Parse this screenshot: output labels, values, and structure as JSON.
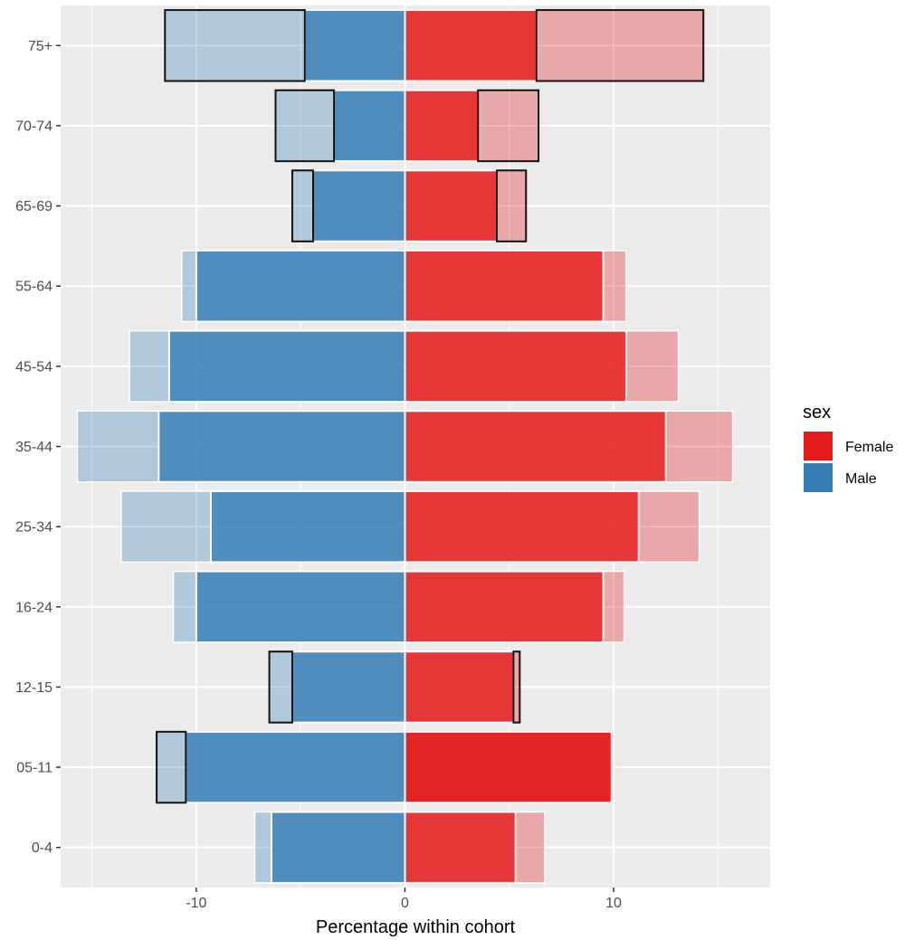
{
  "chart_data": {
    "type": "bar",
    "orientation": "horizontal",
    "xlabel": "Percentage within cohort",
    "ylabel": "",
    "xlim": [
      -16.5,
      17.5
    ],
    "xticks": [
      -10,
      0,
      10
    ],
    "xtick_labels": [
      "-10",
      "0",
      "10"
    ],
    "categories": [
      "75+",
      "70-74",
      "65-69",
      "55-64",
      "45-54",
      "35-44",
      "25-34",
      "16-24",
      "12-15",
      "05-11",
      "0-4"
    ],
    "grid": true,
    "legend_position": "right",
    "legend": {
      "title": "sex",
      "entries": [
        {
          "label": "Female",
          "color": "#E41A1C"
        },
        {
          "label": "Male",
          "color": "#377EB8"
        }
      ]
    },
    "series": [
      {
        "name": "Female",
        "values": [
          6.3,
          3.5,
          4.4,
          9.5,
          10.6,
          12.5,
          11.2,
          9.5,
          5.2,
          9.9,
          5.3
        ]
      },
      {
        "name": "Male",
        "values": [
          -4.8,
          -3.4,
          -4.4,
          -10.0,
          -11.3,
          -11.8,
          -9.3,
          -10.0,
          -5.4,
          -10.5,
          -6.4
        ]
      }
    ],
    "comparison_series": [
      {
        "name": "Female",
        "values": [
          14.3,
          6.4,
          5.8,
          10.6,
          13.1,
          15.7,
          14.1,
          10.5,
          5.5,
          9.9,
          6.7
        ]
      },
      {
        "name": "Male",
        "values": [
          -11.5,
          -6.2,
          -5.4,
          -10.7,
          -13.2,
          -15.7,
          -13.6,
          -11.1,
          -6.5,
          -11.9,
          -7.2
        ]
      }
    ],
    "colors": {
      "female": "#E41A1C",
      "male": "#377EB8",
      "panel_background": "#EBEBEB",
      "gridline": "#FFFFFF"
    }
  }
}
